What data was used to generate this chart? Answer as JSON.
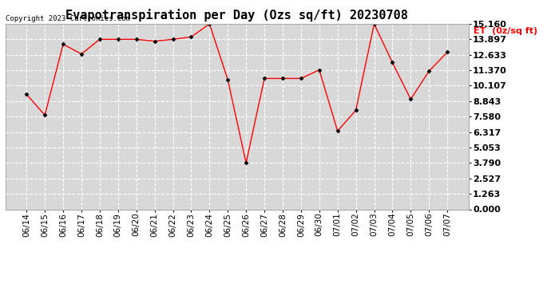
{
  "title": "Evapotranspiration per Day (Ozs sq/ft) 20230708",
  "copyright": "Copyright 2023 Cartronics.com",
  "legend_label": "ET  (0z/sq ft)",
  "dates": [
    "06/14",
    "06/15",
    "06/16",
    "06/17",
    "06/18",
    "06/19",
    "06/20",
    "06/21",
    "06/22",
    "06/23",
    "06/24",
    "06/25",
    "06/26",
    "06/27",
    "06/28",
    "06/29",
    "06/30",
    "07/01",
    "07/02",
    "07/03",
    "07/04",
    "07/05",
    "07/06",
    "07/07"
  ],
  "values": [
    9.4,
    7.7,
    13.5,
    12.7,
    13.9,
    13.9,
    13.9,
    13.75,
    13.9,
    14.1,
    15.16,
    10.6,
    3.79,
    10.7,
    10.7,
    10.7,
    11.4,
    6.4,
    8.1,
    15.16,
    12.0,
    9.0,
    11.3,
    12.85
  ],
  "line_color": "red",
  "marker": "D",
  "marker_size": 2.5,
  "ylim": [
    0,
    15.16
  ],
  "yticks": [
    0.0,
    1.263,
    2.527,
    3.79,
    5.053,
    6.317,
    7.58,
    8.843,
    10.107,
    11.37,
    12.633,
    13.897,
    15.16
  ],
  "background_color": "#ffffff",
  "plot_bg_color": "#d8d8d8",
  "grid_color": "white",
  "title_fontsize": 11,
  "tick_fontsize": 7.5,
  "ytick_fontsize": 8,
  "legend_color": "red",
  "copyright_fontsize": 6.5
}
